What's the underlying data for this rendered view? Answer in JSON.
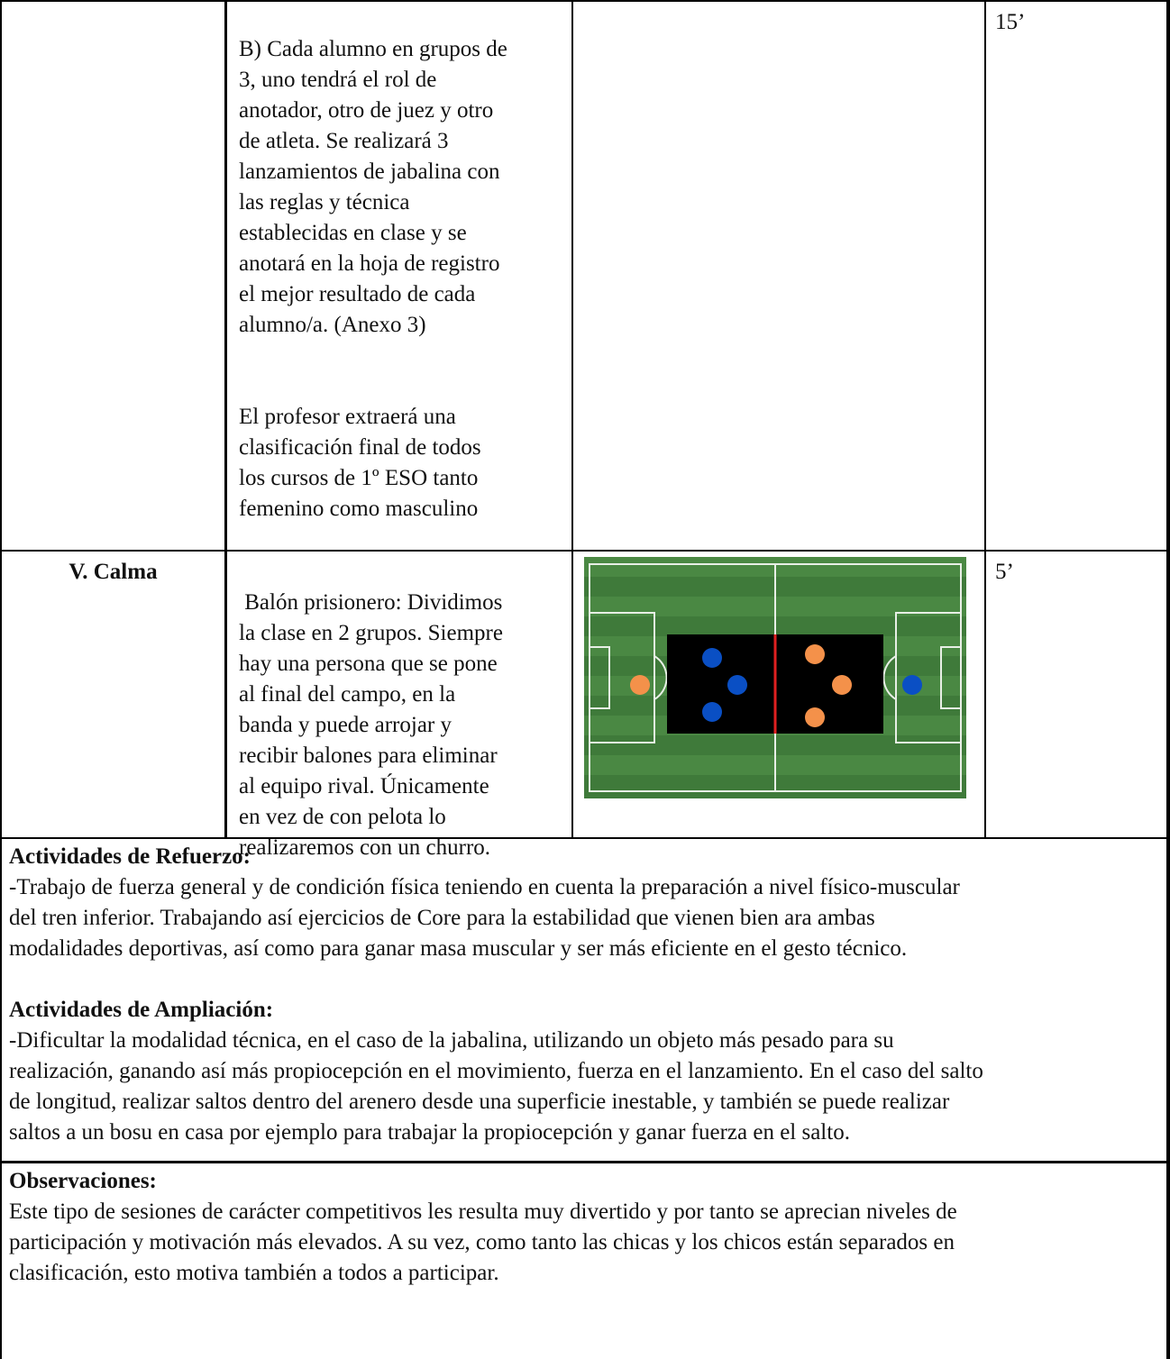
{
  "table": {
    "rows": [
      {
        "content": [
          [
            "B) Cada alumno en grupos de",
            "3, uno tendrá el rol de",
            "anotador, otro de juez y otro",
            "de atleta. Se realizará 3",
            "lanzamientos de jabalina con",
            "las reglas y técnica",
            "establecidas en clase y se",
            "anotará en la hoja de registro",
            "el mejor resultado de cada",
            "alumno/a. (Anexo 3)"
          ],
          [
            "El profesor extraerá una",
            "clasificación final de todos",
            "los cursos de 1º ESO tanto",
            "femenino como masculino"
          ]
        ],
        "time": "15’"
      },
      {
        "phase": "V. Calma",
        "content": [
          [
            " Balón prisionero: Dividimos",
            "la clase en 2 grupos. Siempre",
            "hay una persona que se pone",
            "al final del campo, en la",
            "banda y puede arrojar y",
            "recibir balones para eliminar",
            "al equipo rival. Únicamente",
            "en vez de con pelota lo",
            "realizaremos con un churro."
          ]
        ],
        "time": "5’"
      }
    ]
  },
  "sections": [
    {
      "heading": "Actividades de Refuerzo:",
      "lines": [
        "-Trabajo de fuerza general y de condición física teniendo en cuenta la preparación a nivel físico-muscular",
        "del tren inferior. Trabajando así ejercicios de Core para la estabilidad que vienen bien ara ambas",
        "modalidades deportivas, así como para ganar masa muscular y ser más eficiente en el gesto técnico."
      ]
    },
    {
      "heading": "Actividades de Ampliación:",
      "lines": [
        "-Dificultar la modalidad técnica, en el caso de la jabalina, utilizando un objeto más pesado para su",
        "realización, ganando así más propiocepción en el movimiento, fuerza en el lanzamiento. En el caso del salto",
        "de longitud, realizar saltos dentro del arenero desde una superficie inestable, y también se puede realizar",
        "saltos a un bosu en casa por ejemplo para trabajar la propiocepción y ganar fuerza en el salto."
      ]
    },
    {
      "heading": "Observaciones:",
      "lines": [
        "Este tipo de sesiones de carácter competitivos les resulta muy divertido y por tanto se aprecian niveles de",
        "participación y motivación más elevados. A su vez, como tanto las chicas y los chicos están separados en",
        "clasificación, esto motiva también a todos a participar."
      ]
    }
  ]
}
